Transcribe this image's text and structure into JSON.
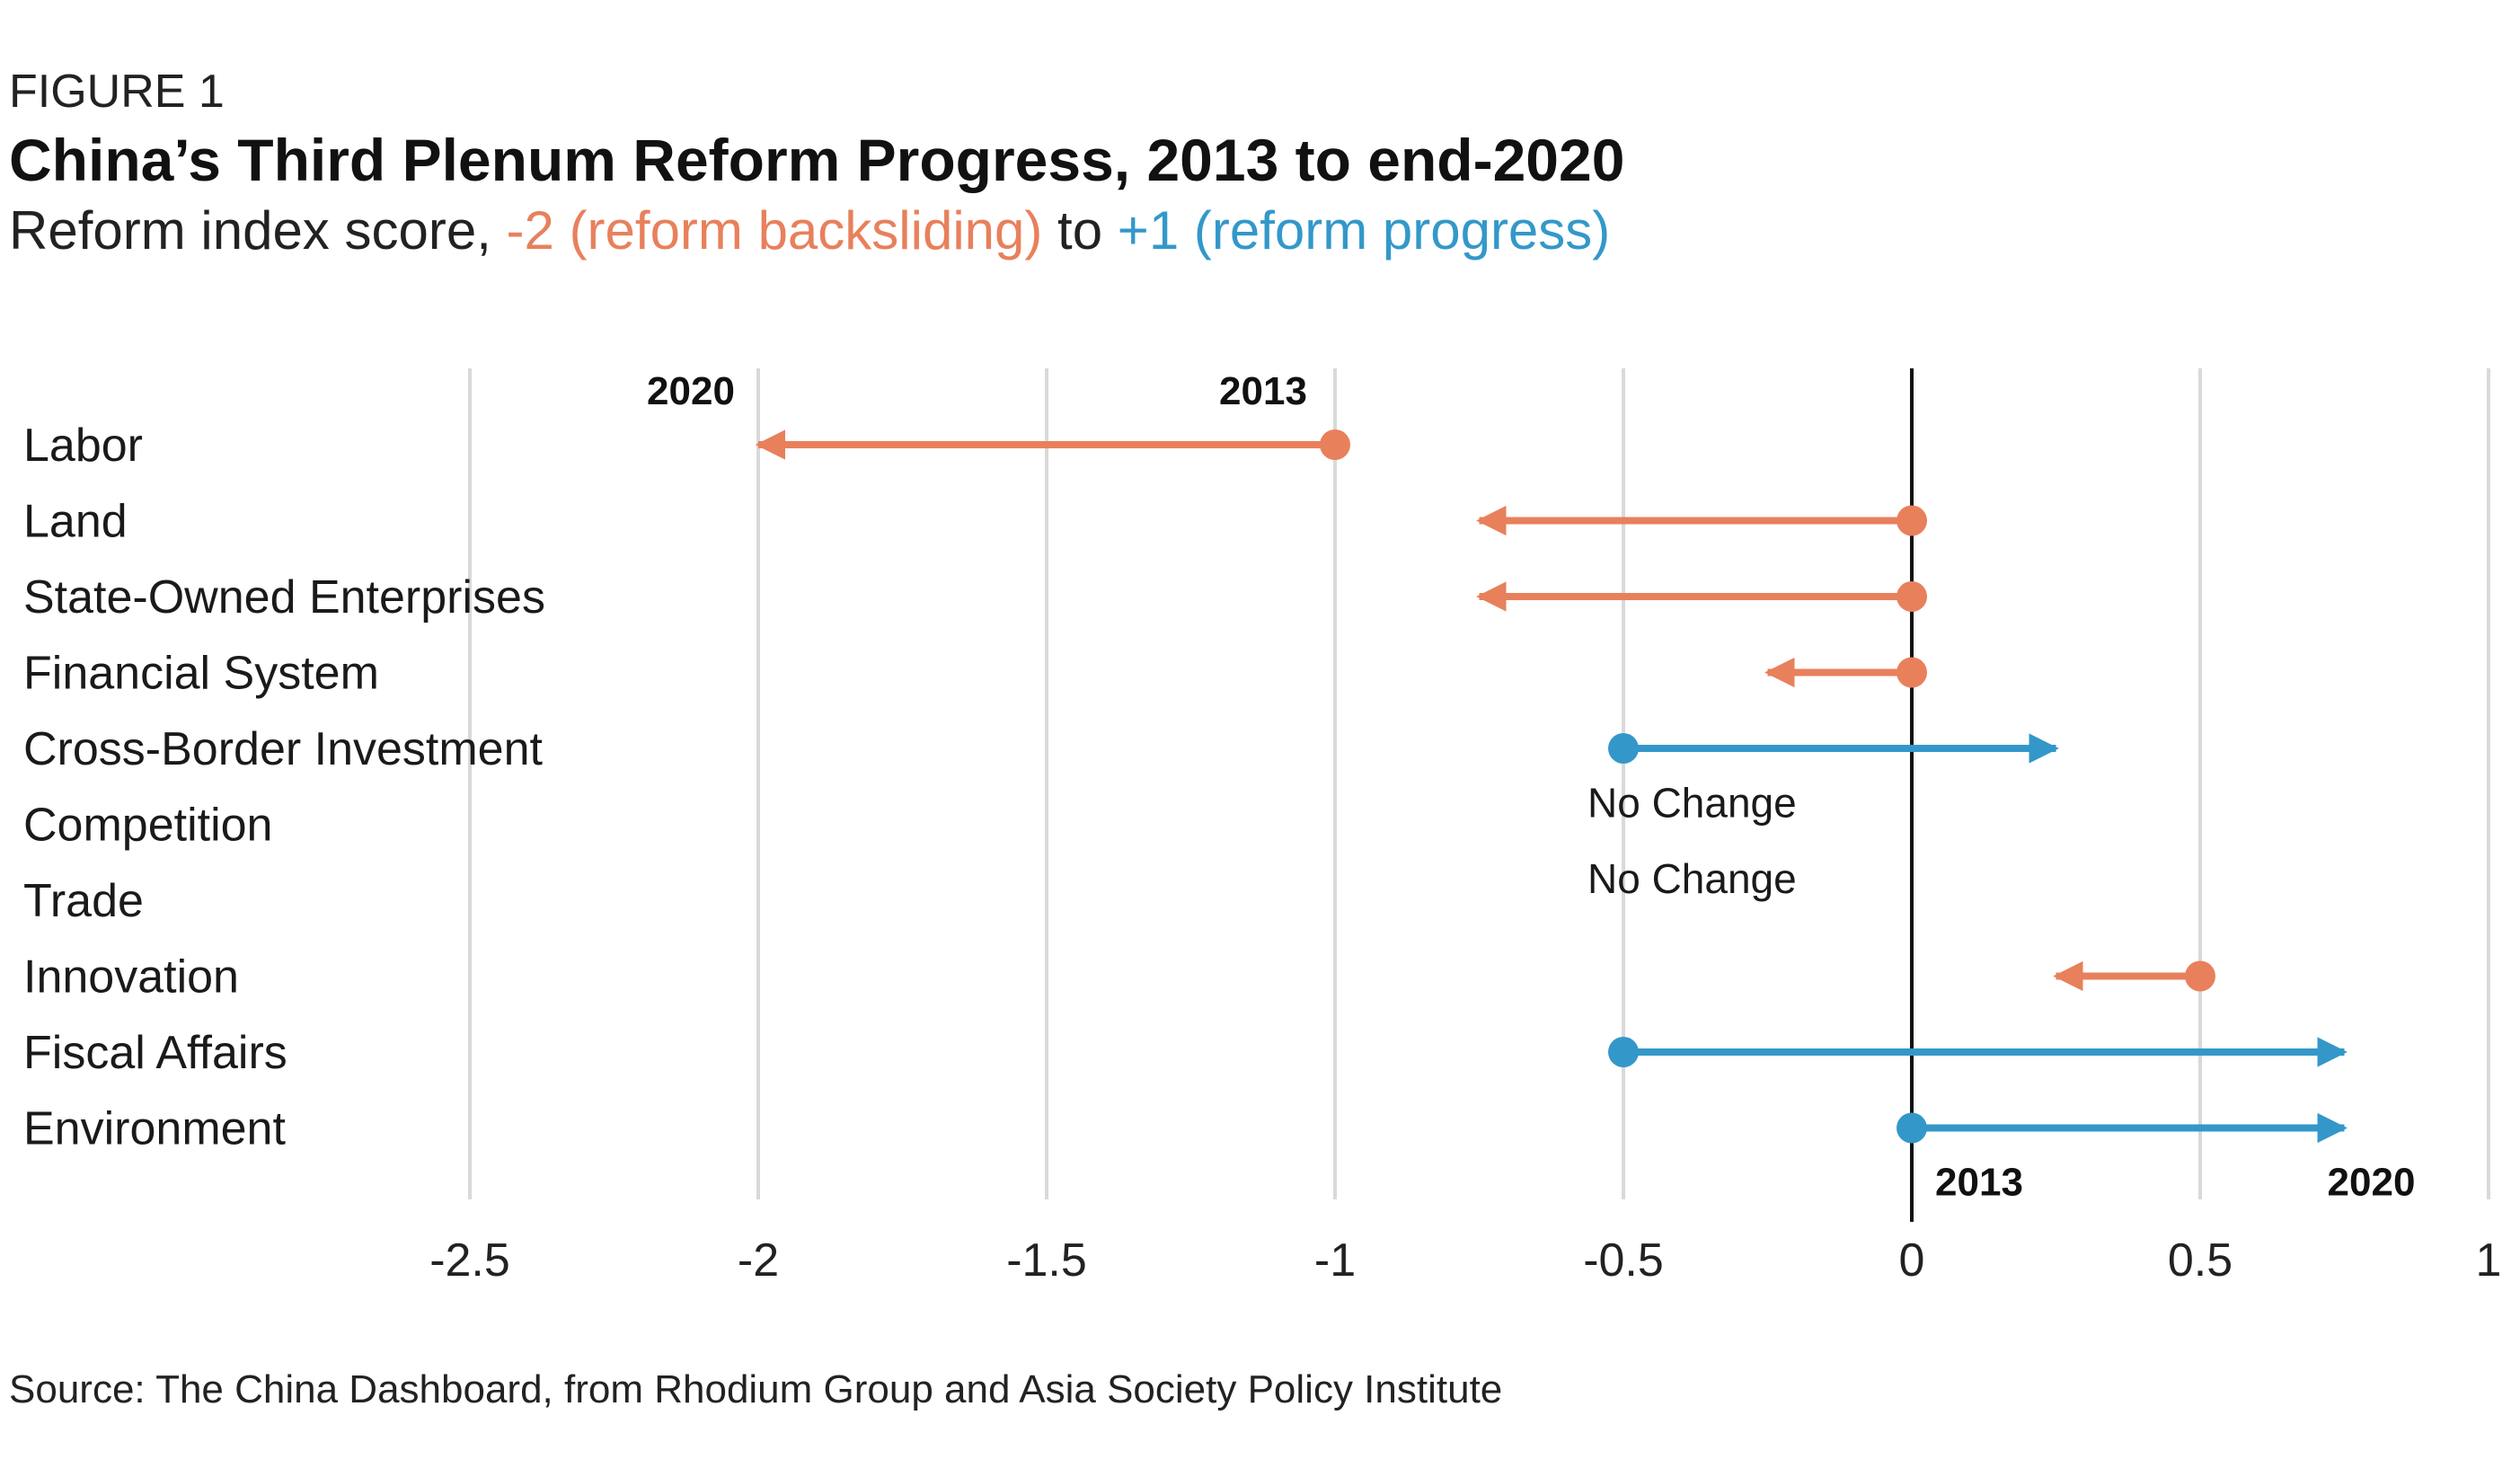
{
  "figure_label": "FIGURE 1",
  "title": "China’s Third Plenum Reform Progress, 2013 to end-2020",
  "subtitle": {
    "prefix": "Reform index score, ",
    "neg_part": "-2 (reform backsliding)",
    "middle": " to ",
    "pos_part": "+1 (reform progress)"
  },
  "source": "Source: The China Dashboard, from Rhodium Group and Asia Society Policy Institute",
  "colors": {
    "backsliding": "#E8805C",
    "progress": "#3398C9",
    "grid": "#d9d9d9",
    "zero_line": "#111111"
  },
  "chart_data": {
    "type": "dumbbell-arrow",
    "title": "China’s Third Plenum Reform Progress, 2013 to end-2020",
    "xlim": [
      -2.5,
      1
    ],
    "x_ticks": [
      -2.5,
      -2,
      -1.5,
      -1,
      -0.5,
      0,
      0.5,
      1
    ],
    "x_tick_labels": [
      "-2.5",
      "-2",
      "-1.5",
      "-1",
      "-0.5",
      "0",
      "0.5",
      "1"
    ],
    "grid": true,
    "series": [
      {
        "category": "Labor",
        "start_2013": -1,
        "end_2020": -2,
        "direction": "backsliding"
      },
      {
        "category": "Land",
        "start_2013": 0,
        "end_2020": -0.75,
        "direction": "backsliding"
      },
      {
        "category": "State-Owned Enterprises",
        "start_2013": 0,
        "end_2020": -0.75,
        "direction": "backsliding"
      },
      {
        "category": "Financial System",
        "start_2013": 0,
        "end_2020": -0.25,
        "direction": "backsliding"
      },
      {
        "category": "Cross-Border Investment",
        "start_2013": -0.5,
        "end_2020": 0.25,
        "direction": "progress"
      },
      {
        "category": "Competition",
        "start_2013": null,
        "end_2020": null,
        "direction": "none",
        "note": "No Change"
      },
      {
        "category": "Trade",
        "start_2013": null,
        "end_2020": null,
        "direction": "none",
        "note": "No Change"
      },
      {
        "category": "Innovation",
        "start_2013": 0.5,
        "end_2020": 0.25,
        "direction": "backsliding"
      },
      {
        "category": "Fiscal Affairs",
        "start_2013": -0.5,
        "end_2020": 0.75,
        "direction": "progress"
      },
      {
        "category": "Environment",
        "start_2013": 0,
        "end_2020": 0.75,
        "direction": "progress"
      }
    ],
    "annotations": [
      {
        "text": "2020",
        "row": "Labor",
        "anchor": "end_2020"
      },
      {
        "text": "2013",
        "row": "Labor",
        "anchor": "start_2013"
      },
      {
        "text": "2013",
        "row": "Environment",
        "anchor": "start_2013"
      },
      {
        "text": "2020",
        "row": "Environment",
        "anchor": "end_2020"
      }
    ]
  }
}
